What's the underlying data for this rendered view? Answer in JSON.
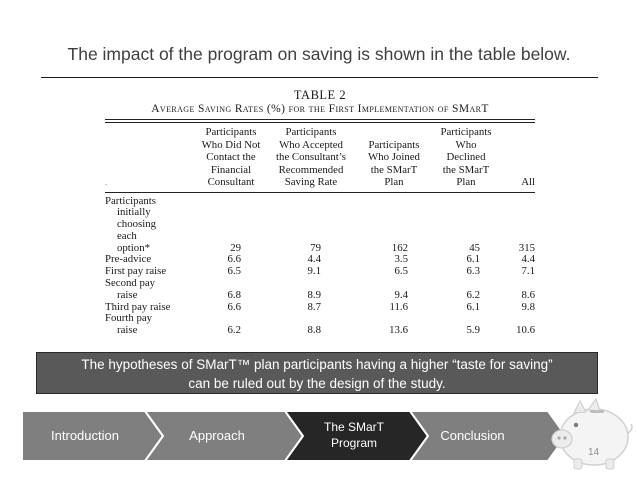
{
  "slide": {
    "title": "The impact of the program on saving is shown in the table below.",
    "page_number": "14"
  },
  "table": {
    "number": "TABLE 2",
    "caption": "Average Saving Rates (%) for the First Implementation of SMarT",
    "columns": [
      {
        "lines": [
          "Participants",
          "Who Did Not",
          "Contact the",
          "Financial",
          "Consultant"
        ]
      },
      {
        "lines": [
          "Participants",
          "Who Accepted",
          "the Consultant’s",
          "Recommended",
          "Saving Rate"
        ]
      },
      {
        "lines": [
          "Participants",
          "Who Joined",
          "the SMarT",
          "Plan"
        ]
      },
      {
        "lines": [
          "Participants",
          "Who Declined",
          "the SMarT",
          "Plan"
        ]
      },
      {
        "lines": [
          "All"
        ]
      }
    ],
    "rows": [
      {
        "label_lines": [
          "Participants",
          "initially",
          "choosing",
          "each",
          "option*"
        ],
        "values": [
          "29",
          "79",
          "162",
          "45",
          "315"
        ]
      },
      {
        "label_lines": [
          "Pre-advice"
        ],
        "values": [
          "6.6",
          "4.4",
          "3.5",
          "6.1",
          "4.4"
        ]
      },
      {
        "label_lines": [
          "First pay raise"
        ],
        "values": [
          "6.5",
          "9.1",
          "6.5",
          "6.3",
          "7.1"
        ]
      },
      {
        "label_lines": [
          "Second pay",
          "raise"
        ],
        "values": [
          "6.8",
          "8.9",
          "9.4",
          "6.2",
          "8.6"
        ]
      },
      {
        "label_lines": [
          "Third pay raise"
        ],
        "values": [
          "6.6",
          "8.7",
          "11.6",
          "6.1",
          "9.8"
        ]
      },
      {
        "label_lines": [
          "Fourth pay",
          "raise"
        ],
        "values": [
          "6.2",
          "8.8",
          "13.6",
          "5.9",
          "10.6"
        ]
      }
    ]
  },
  "banner": {
    "line1": "The hypotheses of SMarT™ plan participants having a higher “taste for saving”",
    "line2": "can be ruled out by the design of the study."
  },
  "nav": {
    "steps": [
      {
        "label": "Introduction",
        "active": false
      },
      {
        "label": "Approach",
        "active": false
      },
      {
        "label_lines": [
          "The SMarT",
          "Program"
        ],
        "active": true
      },
      {
        "label": "Conclusion",
        "active": false
      }
    ],
    "colors": {
      "inactive": "#7f7f7f",
      "active": "#262626",
      "border": "#ffffff"
    }
  }
}
